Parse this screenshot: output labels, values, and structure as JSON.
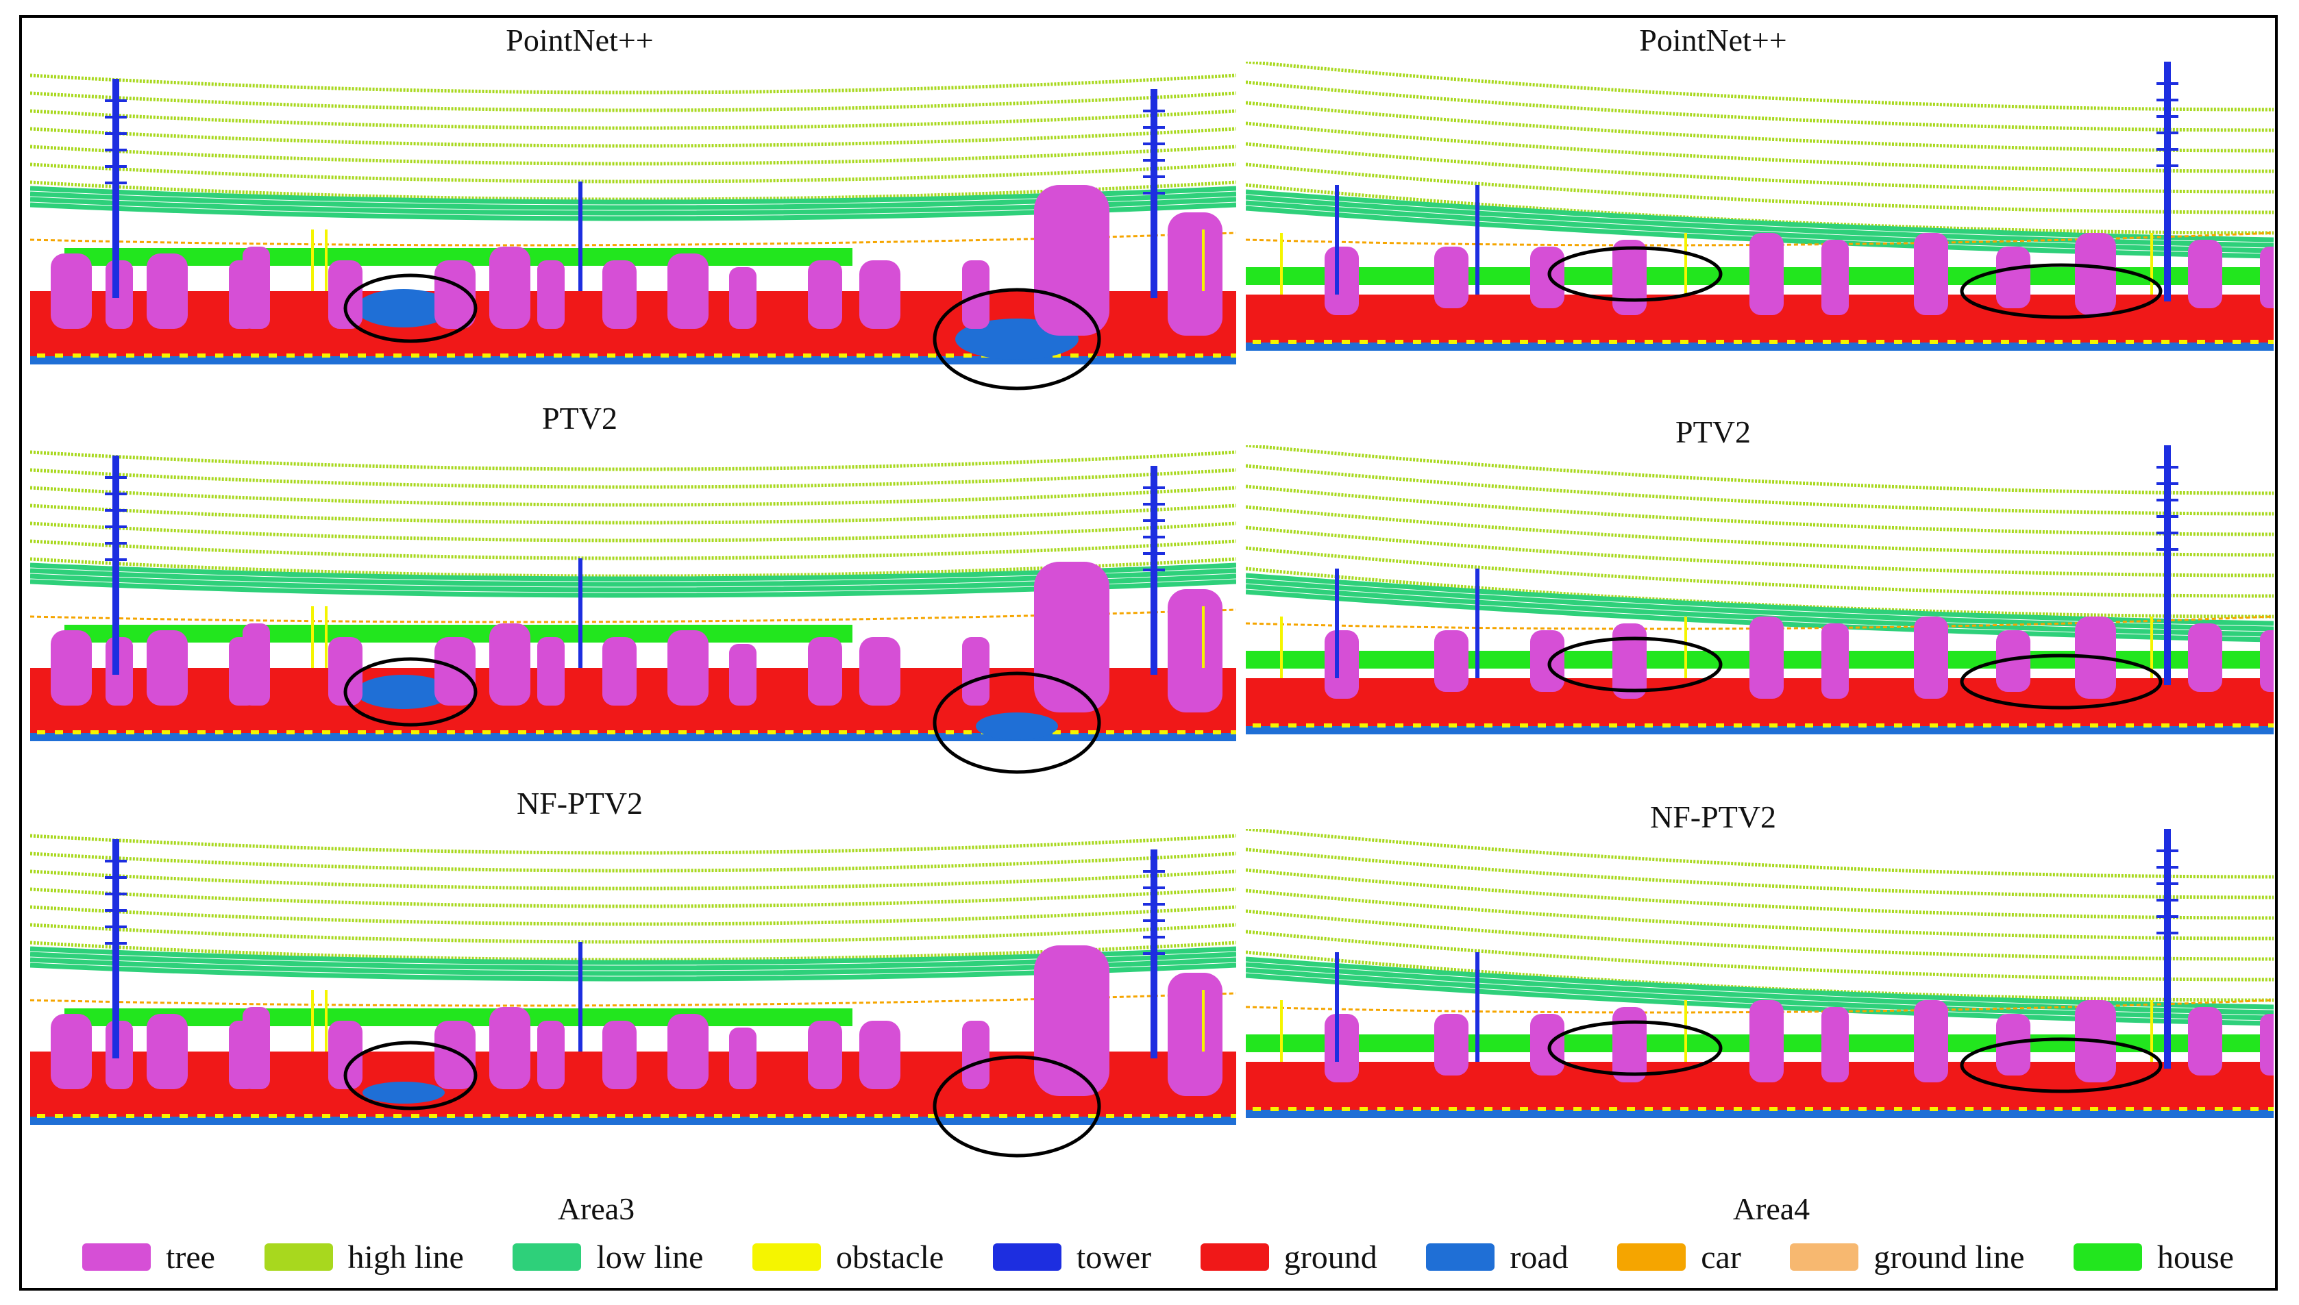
{
  "figure": {
    "titles": {
      "left_top": "PointNet++",
      "left_mid": "PTV2",
      "left_bot": "NF-PTV2",
      "right_top": "PointNet++",
      "right_mid": "PTV2",
      "right_bot": "NF-PTV2"
    },
    "area_labels": {
      "left": "Area3",
      "right": "Area4"
    }
  },
  "legend": {
    "items": [
      {
        "label": "tree",
        "color": "#d64fd6"
      },
      {
        "label": "high line",
        "color": "#a8d81e"
      },
      {
        "label": "low line",
        "color": "#2ed07a"
      },
      {
        "label": "obstacle",
        "color": "#f5f500"
      },
      {
        "label": "tower",
        "color": "#1d2ee0"
      },
      {
        "label": "ground",
        "color": "#f01818"
      },
      {
        "label": "road",
        "color": "#1f6fd6"
      },
      {
        "label": "car",
        "color": "#f5a500"
      },
      {
        "label": "ground line",
        "color": "#f7b870"
      },
      {
        "label": "house",
        "color": "#22e61e"
      }
    ]
  },
  "colors": {
    "tree": "#d64fd6",
    "high_line": "#a8d81e",
    "low_line": "#2ed07a",
    "obstacle": "#f5f500",
    "tower": "#1d2ee0",
    "ground": "#f01818",
    "road": "#1f6fd6",
    "car": "#f5a500",
    "ground_line": "#f7b870",
    "house": "#22e61e"
  }
}
